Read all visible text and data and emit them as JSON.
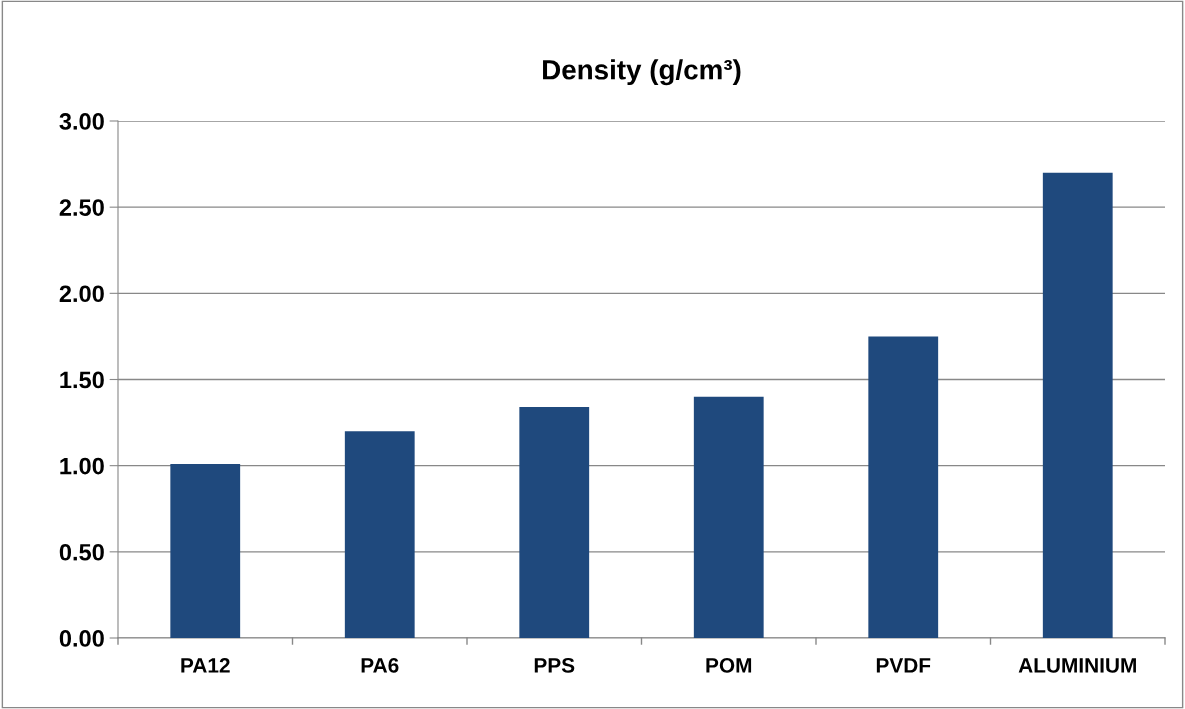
{
  "chart_data": {
    "type": "bar",
    "title": "Density (g/cm³)",
    "categories": [
      "PA12",
      "PA6",
      "PPS",
      "POM",
      "PVDF",
      "ALUMINIUM"
    ],
    "values": [
      1.01,
      1.2,
      1.34,
      1.4,
      1.75,
      2.7
    ],
    "color": "#1f497d",
    "ylim": [
      0,
      3
    ],
    "yticks": [
      {
        "value": 0,
        "label": "0.00"
      },
      {
        "value": 0.5,
        "label": "0.50"
      },
      {
        "value": 1,
        "label": "1.00"
      },
      {
        "value": 1.5,
        "label": "1.50"
      },
      {
        "value": 2,
        "label": "2.00"
      },
      {
        "value": 2.5,
        "label": "2.50"
      },
      {
        "value": 3,
        "label": "3.00"
      }
    ],
    "grid": "y",
    "legend": false
  }
}
